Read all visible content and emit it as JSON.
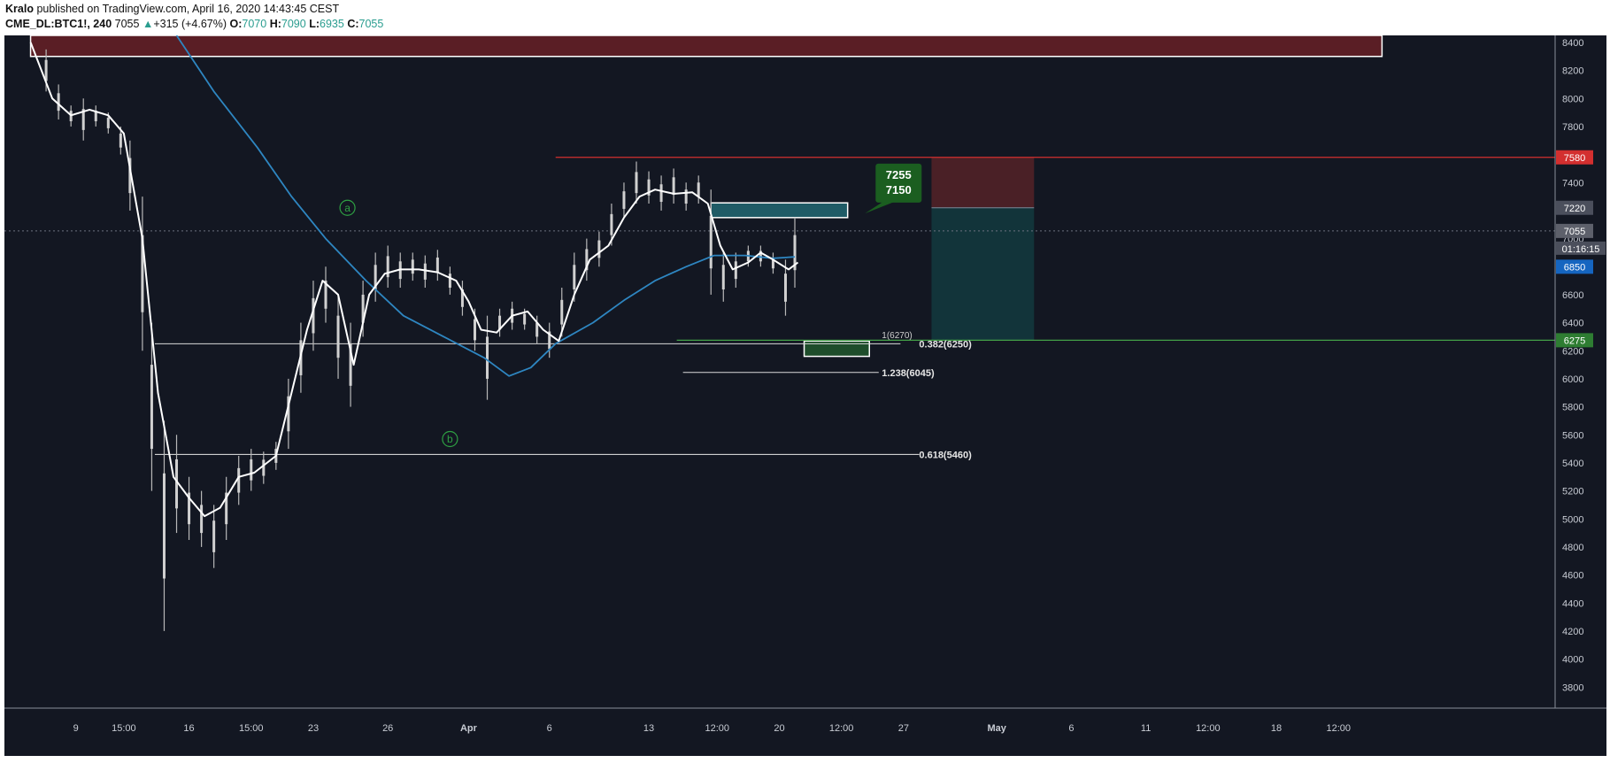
{
  "header": {
    "author": "Kralo",
    "published": "published on TradingView.com, April 16, 2020 14:43:45 CEST",
    "symbol": "CME_DL:BTC1!, 240",
    "last": "7055",
    "change": "+315 (+4.67%)",
    "o_label": "O:",
    "o_value": "7070",
    "h_label": "H:",
    "h_value": "7090",
    "l_label": "L:",
    "l_value": "6935",
    "c_label": "C:",
    "c_value": "7055"
  },
  "colors": {
    "background": "#131722",
    "grid_line": "#ffffff",
    "ma_blue": "#2e86c1",
    "ma_white": "#ffffff",
    "resistance_red": "#d32f2f",
    "support_green": "#43a047",
    "stop_zone": "#4a2026",
    "target_zone": "#12343a",
    "supply_zone_top": "#5a1e25",
    "entry_box": "#1f5b66",
    "label_green": "#1b5e20"
  },
  "chart_data": {
    "type": "candlestick",
    "symbol": "CME_DL:BTC1!",
    "timeframe": "240",
    "y_axis": {
      "range": [
        3650,
        8450
      ],
      "ticks": [
        3800,
        4000,
        4200,
        4400,
        4600,
        4800,
        5000,
        5200,
        5400,
        5600,
        5800,
        6000,
        6200,
        6400,
        6600,
        6800,
        7000,
        7200,
        7400,
        7600,
        7800,
        8000,
        8200,
        8400
      ]
    },
    "x_axis": {
      "ticks": [
        "9",
        "15:00",
        "16",
        "15:00",
        "23",
        "26",
        "Apr",
        "6",
        "13",
        "12:00",
        "20",
        "12:00",
        "27",
        "May",
        "6",
        "11",
        "12:00",
        "18",
        "12:00"
      ]
    },
    "price_labels": [
      {
        "value": 7580,
        "text": "7580",
        "color": "#d32f2f"
      },
      {
        "value": 7220,
        "text": "7220",
        "color": "#4b4f5c"
      },
      {
        "value": 7055,
        "text": "7055",
        "color": "#5d606b"
      },
      {
        "value": 6850,
        "text": "6850",
        "color": "#1565c0"
      },
      {
        "value": 6275,
        "text": "6275",
        "color": "#2e7d32"
      }
    ],
    "countdown": "01:16:15",
    "horizontal_levels": [
      {
        "value": 7580,
        "label": ""
      },
      {
        "value": 6275,
        "label": ""
      },
      {
        "value": 6250,
        "label": "0.382(6250)"
      },
      {
        "value": 6045,
        "label": "1.238(6045)"
      },
      {
        "value": 5460,
        "label": "0.618(5460)"
      }
    ],
    "partial_label": "1(6270)",
    "entry_callout": {
      "line1": "7255",
      "line2": "7150"
    },
    "wave_labels": [
      "a",
      "b"
    ],
    "price_path": [
      [
        0.5,
        8400
      ],
      [
        1.2,
        8050
      ],
      [
        1.5,
        7900
      ],
      [
        2.5,
        7880
      ],
      [
        3.2,
        7760
      ],
      [
        3.7,
        7400
      ],
      [
        4.2,
        6600
      ],
      [
        4.6,
        5700
      ],
      [
        5.0,
        5250
      ],
      [
        5.6,
        5150
      ],
      [
        6.1,
        5050
      ],
      [
        6.8,
        5250
      ],
      [
        7.3,
        5400
      ],
      [
        7.8,
        5380
      ],
      [
        8.4,
        5500
      ],
      [
        8.9,
        5950
      ],
      [
        9.4,
        6400
      ],
      [
        9.8,
        6650
      ],
      [
        10.2,
        6500
      ],
      [
        10.6,
        6300
      ],
      [
        11.1,
        6450
      ],
      [
        11.6,
        6700
      ],
      [
        12.0,
        6800
      ],
      [
        12.5,
        6780
      ],
      [
        13.0,
        6770
      ],
      [
        13.6,
        6790
      ],
      [
        14.2,
        6700
      ],
      [
        14.6,
        6550
      ],
      [
        15.0,
        6350
      ],
      [
        15.5,
        6400
      ],
      [
        16.0,
        6450
      ],
      [
        16.5,
        6420
      ],
      [
        17.2,
        6300
      ],
      [
        17.6,
        6450
      ],
      [
        18.2,
        6750
      ],
      [
        18.7,
        6850
      ],
      [
        19.1,
        6950
      ],
      [
        19.5,
        7150
      ],
      [
        20.0,
        7300
      ],
      [
        20.5,
        7350
      ],
      [
        21.0,
        7300
      ],
      [
        21.5,
        7320
      ],
      [
        22.0,
        7280
      ],
      [
        22.4,
        7080
      ],
      [
        22.8,
        6780
      ],
      [
        23.2,
        6800
      ],
      [
        23.6,
        6880
      ],
      [
        24.0,
        6900
      ],
      [
        24.4,
        6850
      ],
      [
        24.8,
        6780
      ],
      [
        25.1,
        6810
      ]
    ],
    "ma_white": [
      [
        0.5,
        8400
      ],
      [
        1.2,
        8000
      ],
      [
        1.8,
        7880
      ],
      [
        2.4,
        7920
      ],
      [
        3.0,
        7880
      ],
      [
        3.5,
        7750
      ],
      [
        4.1,
        7000
      ],
      [
        4.6,
        5900
      ],
      [
        5.1,
        5300
      ],
      [
        5.6,
        5150
      ],
      [
        6.1,
        5020
      ],
      [
        6.6,
        5080
      ],
      [
        7.2,
        5300
      ],
      [
        7.7,
        5330
      ],
      [
        8.4,
        5450
      ],
      [
        8.9,
        5900
      ],
      [
        9.4,
        6350
      ],
      [
        9.9,
        6700
      ],
      [
        10.4,
        6600
      ],
      [
        10.9,
        6100
      ],
      [
        11.4,
        6600
      ],
      [
        11.9,
        6750
      ],
      [
        12.4,
        6780
      ],
      [
        13.0,
        6780
      ],
      [
        13.6,
        6760
      ],
      [
        14.2,
        6700
      ],
      [
        14.6,
        6550
      ],
      [
        15.0,
        6350
      ],
      [
        15.5,
        6330
      ],
      [
        16.0,
        6450
      ],
      [
        16.5,
        6480
      ],
      [
        17.0,
        6350
      ],
      [
        17.5,
        6270
      ],
      [
        18.0,
        6600
      ],
      [
        18.5,
        6850
      ],
      [
        19.1,
        6950
      ],
      [
        19.6,
        7150
      ],
      [
        20.1,
        7300
      ],
      [
        20.6,
        7350
      ],
      [
        21.2,
        7320
      ],
      [
        21.8,
        7330
      ],
      [
        22.3,
        7250
      ],
      [
        22.7,
        6950
      ],
      [
        23.1,
        6780
      ],
      [
        23.6,
        6830
      ],
      [
        24.0,
        6900
      ],
      [
        24.4,
        6850
      ],
      [
        24.9,
        6780
      ],
      [
        25.2,
        6830
      ]
    ],
    "ma_blue": [
      [
        5.2,
        8450
      ],
      [
        6.4,
        8050
      ],
      [
        7.8,
        7650
      ],
      [
        8.9,
        7300
      ],
      [
        10.0,
        7000
      ],
      [
        11.3,
        6700
      ],
      [
        12.5,
        6450
      ],
      [
        13.8,
        6300
      ],
      [
        15.1,
        6150
      ],
      [
        15.9,
        6020
      ],
      [
        16.6,
        6080
      ],
      [
        17.4,
        6250
      ],
      [
        18.6,
        6400
      ],
      [
        19.6,
        6560
      ],
      [
        20.6,
        6700
      ],
      [
        21.6,
        6800
      ],
      [
        22.5,
        6880
      ],
      [
        23.5,
        6880
      ],
      [
        24.4,
        6860
      ],
      [
        25.1,
        6870
      ]
    ],
    "candles": [
      [
        1,
        8350,
        8050
      ],
      [
        1.4,
        8100,
        7850
      ],
      [
        1.8,
        7950,
        7800
      ],
      [
        2.2,
        8000,
        7700
      ],
      [
        2.6,
        7950,
        7800
      ],
      [
        3.0,
        7900,
        7750
      ],
      [
        3.4,
        7800,
        7600
      ],
      [
        3.7,
        7700,
        7200
      ],
      [
        4.1,
        7300,
        6200
      ],
      [
        4.4,
        6400,
        5200
      ],
      [
        4.8,
        5700,
        4200
      ],
      [
        5.2,
        5600,
        4900
      ],
      [
        5.6,
        5300,
        4850
      ],
      [
        6.0,
        5200,
        4800
      ],
      [
        6.4,
        5100,
        4650
      ],
      [
        6.8,
        5300,
        4850
      ],
      [
        7.2,
        5450,
        5100
      ],
      [
        7.6,
        5500,
        5200
      ],
      [
        8.0,
        5480,
        5250
      ],
      [
        8.4,
        5550,
        5350
      ],
      [
        8.8,
        6000,
        5500
      ],
      [
        9.2,
        6400,
        5900
      ],
      [
        9.6,
        6700,
        6200
      ],
      [
        10.0,
        6800,
        6400
      ],
      [
        10.4,
        6600,
        6000
      ],
      [
        10.8,
        6400,
        5800
      ],
      [
        11.2,
        6700,
        6300
      ],
      [
        11.6,
        6900,
        6550
      ],
      [
        12.0,
        6950,
        6650
      ],
      [
        12.4,
        6900,
        6650
      ],
      [
        12.8,
        6900,
        6700
      ],
      [
        13.2,
        6880,
        6650
      ],
      [
        13.6,
        6920,
        6700
      ],
      [
        14.0,
        6800,
        6600
      ],
      [
        14.4,
        6700,
        6450
      ],
      [
        14.8,
        6500,
        6200
      ],
      [
        15.2,
        6450,
        5850
      ],
      [
        15.6,
        6500,
        6300
      ],
      [
        16.0,
        6550,
        6350
      ],
      [
        16.4,
        6500,
        6350
      ],
      [
        16.8,
        6450,
        6250
      ],
      [
        17.2,
        6400,
        6150
      ],
      [
        17.6,
        6650,
        6300
      ],
      [
        18.0,
        6900,
        6550
      ],
      [
        18.4,
        7000,
        6700
      ],
      [
        18.8,
        7050,
        6800
      ],
      [
        19.2,
        7250,
        6950
      ],
      [
        19.6,
        7400,
        7150
      ],
      [
        20.0,
        7550,
        7250
      ],
      [
        20.4,
        7480,
        7250
      ],
      [
        20.8,
        7450,
        7200
      ],
      [
        21.2,
        7500,
        7250
      ],
      [
        21.6,
        7400,
        7200
      ],
      [
        22.0,
        7450,
        7250
      ],
      [
        22.4,
        7350,
        6600
      ],
      [
        22.8,
        6900,
        6550
      ],
      [
        23.2,
        6900,
        6650
      ],
      [
        23.6,
        6950,
        6800
      ],
      [
        24.0,
        6950,
        6800
      ],
      [
        24.4,
        6900,
        6750
      ],
      [
        24.8,
        6850,
        6450
      ],
      [
        25.1,
        7150,
        6650
      ]
    ],
    "zones": [
      {
        "name": "supply",
        "x0": 0.5,
        "x1": 44,
        "y0": 8300,
        "y1": 8450
      },
      {
        "name": "stop",
        "x0": 29.5,
        "x1": 32.8,
        "y0": 7220,
        "y1": 7580
      },
      {
        "name": "target",
        "x0": 29.5,
        "x1": 32.8,
        "y0": 6275,
        "y1": 7220
      },
      {
        "name": "entry",
        "x0": 22.4,
        "x1": 26.8,
        "y0": 7150,
        "y1": 7255
      },
      {
        "name": "take-profit",
        "x0": 25.4,
        "x1": 27.5,
        "y0": 6160,
        "y1": 6270
      }
    ]
  }
}
